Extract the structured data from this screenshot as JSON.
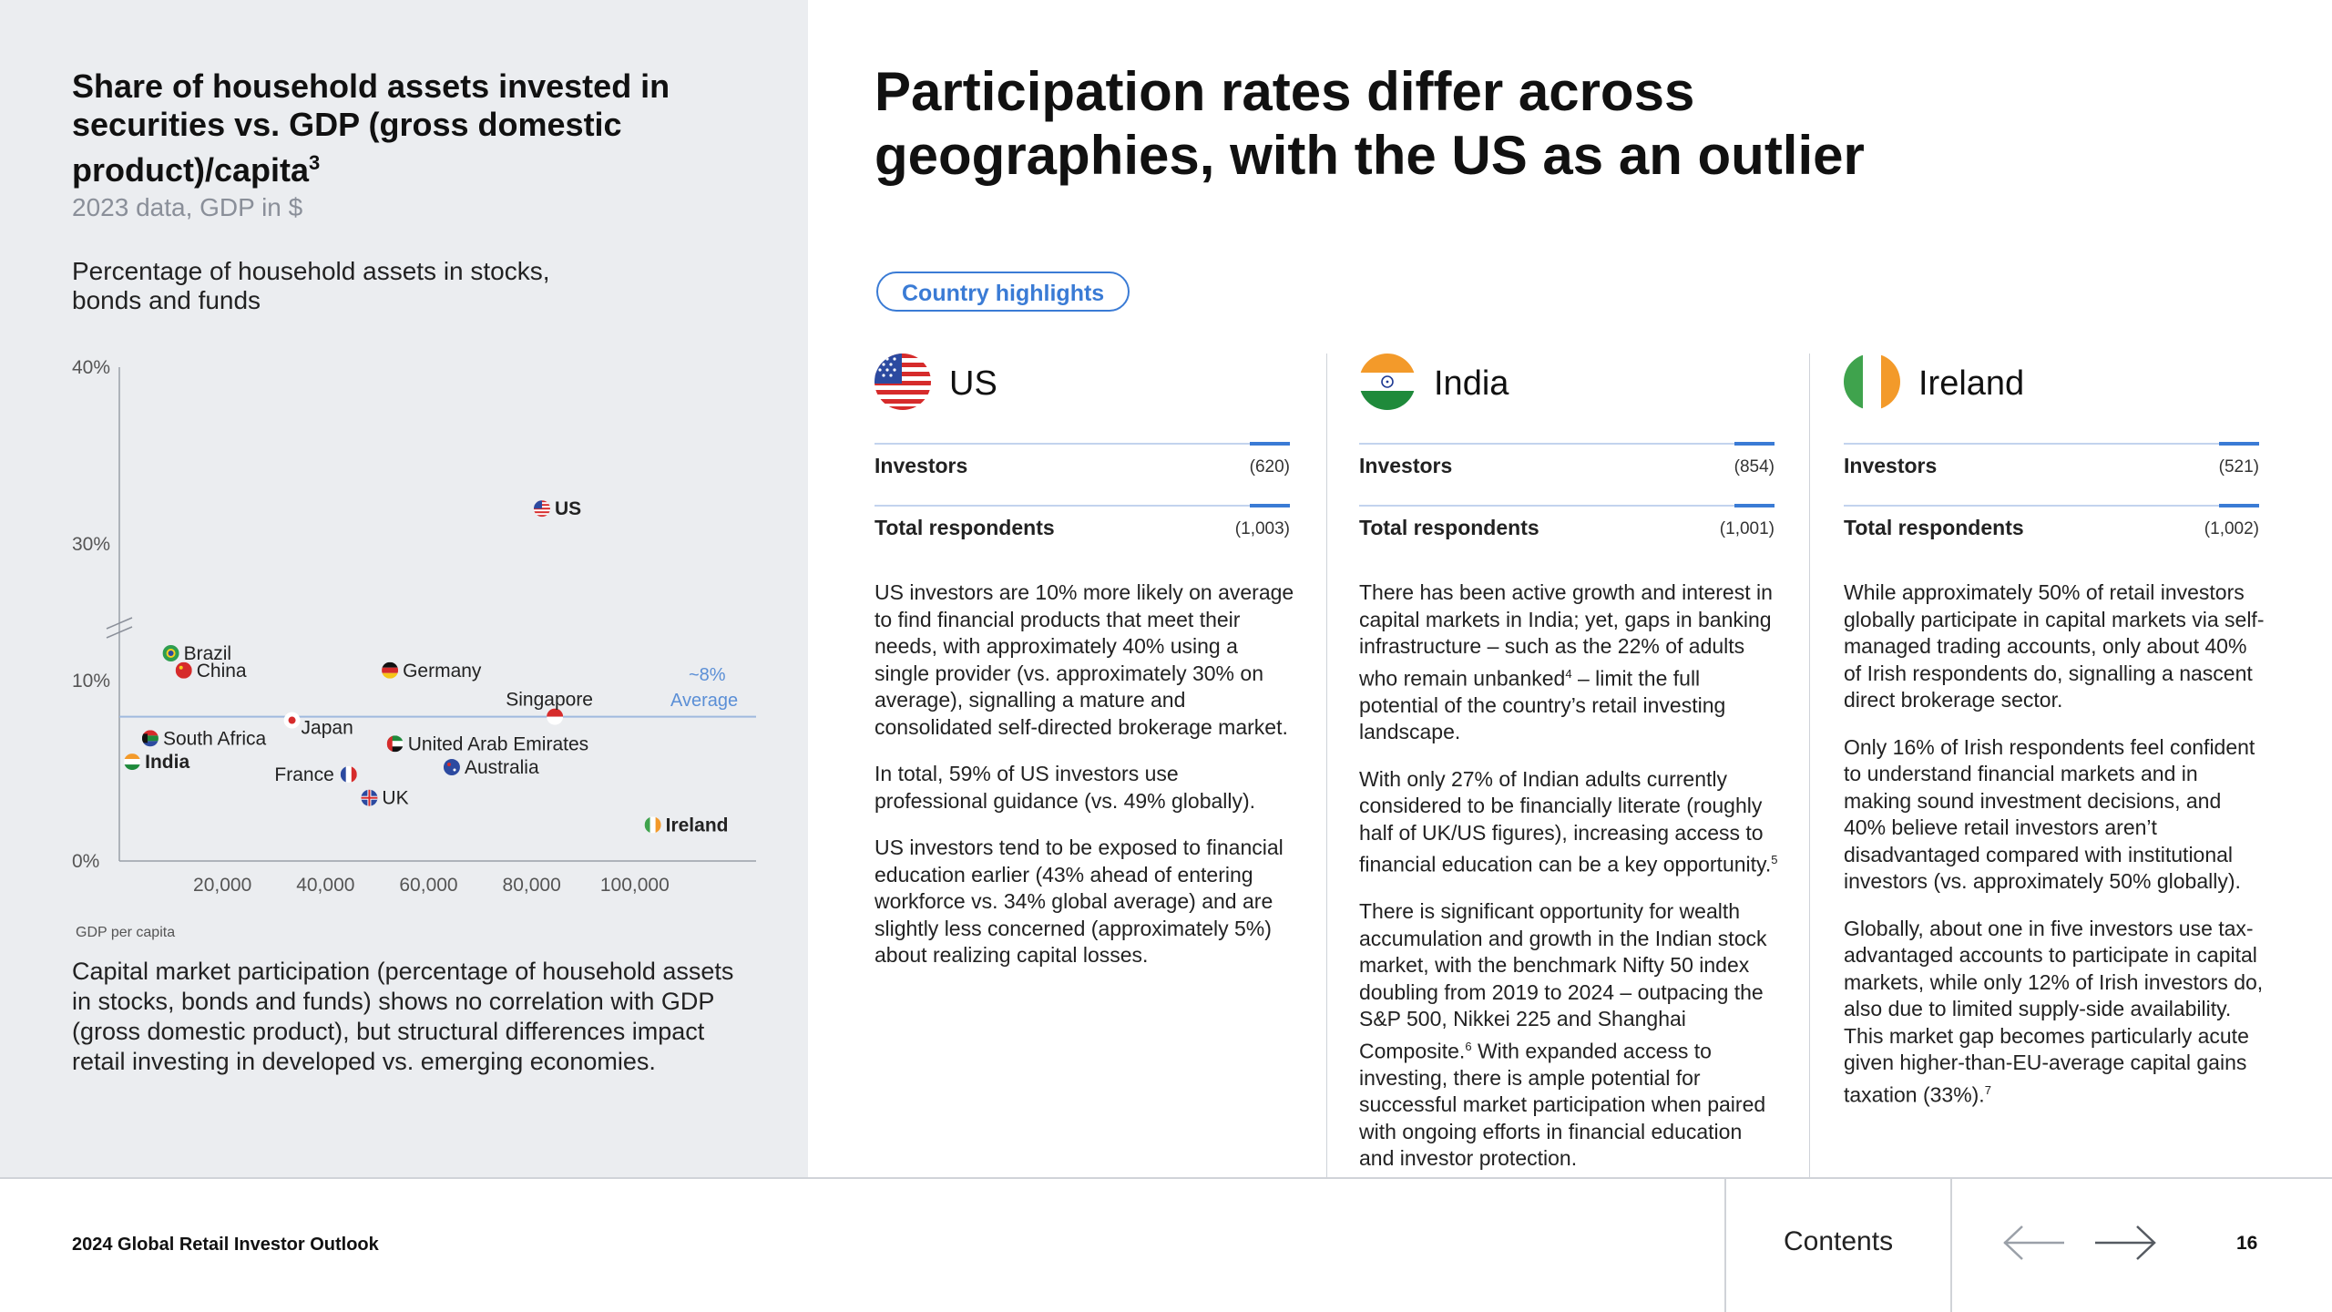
{
  "chart_data": {
    "type": "scatter",
    "title": "Share of household assets invested in securities vs. GDP (gross domestic product)/capita",
    "title_superscript": "3",
    "subtitle": "2023 data, GDP in $",
    "ylabel": "Percentage of household assets in stocks, bonds and funds",
    "xlabel": "GDP per capita",
    "x_ticks": [
      "20,000",
      "40,000",
      "60,000",
      "80,000",
      "100,000"
    ],
    "y_ticks": [
      "0%",
      "10%",
      "30%",
      "40%"
    ],
    "xlim": [
      0,
      120000
    ],
    "y_axis_break": "between 10% and 30%",
    "grid": false,
    "reference_line": {
      "value": 8,
      "label_line1": "~8%",
      "label_line2": "Average",
      "color": "#9fb9de"
    },
    "points": [
      {
        "name": "US",
        "x": 82000,
        "y": 32,
        "bold": true,
        "flag": "us"
      },
      {
        "name": "Brazil",
        "x": 10000,
        "y": 14,
        "bold": false,
        "flag": "brazil"
      },
      {
        "name": "China",
        "x": 12500,
        "y": 11.5,
        "bold": false,
        "flag": "china"
      },
      {
        "name": "Germany",
        "x": 52500,
        "y": 11.5,
        "bold": false,
        "flag": "germany"
      },
      {
        "name": "Singapore",
        "x": 84500,
        "y": 8,
        "bold": false,
        "flag": "singapore"
      },
      {
        "name": "Japan",
        "x": 33500,
        "y": 7.8,
        "bold": false,
        "flag": "japan"
      },
      {
        "name": "South Africa",
        "x": 6000,
        "y": 6.8,
        "bold": false,
        "flag": "south-africa"
      },
      {
        "name": "India",
        "x": 2500,
        "y": 5.5,
        "bold": true,
        "flag": "india"
      },
      {
        "name": "United Arab Emirates",
        "x": 53500,
        "y": 6.5,
        "bold": false,
        "flag": "uae"
      },
      {
        "name": "France",
        "x": 44500,
        "y": 4.8,
        "bold": false,
        "flag": "france"
      },
      {
        "name": "Australia",
        "x": 64500,
        "y": 5.2,
        "bold": false,
        "flag": "australia"
      },
      {
        "name": "UK",
        "x": 48500,
        "y": 3.5,
        "bold": false,
        "flag": "uk"
      },
      {
        "name": "Ireland",
        "x": 103500,
        "y": 2,
        "bold": true,
        "flag": "ireland"
      }
    ]
  },
  "caption": "Capital market participation (percentage of household assets in stocks, bonds and funds) shows no correlation with GDP (gross domestic product), but structural differences impact retail investing in developed vs. emerging economies.",
  "main_title": "Participation rates differ across geographies, with the US as an outlier",
  "pill_label": "Country highlights",
  "countries": [
    {
      "name": "US",
      "investors_label": "Investors",
      "investors_value": "(620)",
      "respondents_label": "Total respondents",
      "respondents_value": "(1,003)",
      "p1": "US investors are 10% more likely on average to find financial products that meet their needs, with approximately 40% using a single provider (vs. approximately 30% on average), signalling a mature and consolidated self-directed brokerage market.",
      "p2": "In total, 59% of US investors use professional guidance (vs. 49% globally).",
      "p3": "US investors tend to be exposed to financial education earlier (43% ahead of entering workforce vs. 34% global average) and are slightly less concerned (approximately 5%) about realizing capital losses."
    },
    {
      "name": "India",
      "investors_label": "Investors",
      "investors_value": "(854)",
      "respondents_label": "Total respondents",
      "respondents_value": "(1,001)",
      "p1a": "There has been active growth and interest in capital markets in India; yet, gaps in banking infrastructure – such as the 22% of adults who remain unbanked",
      "p1_sup": "4",
      "p1b": " – limit the full potential of the country’s retail investing landscape.",
      "p2a": "With only 27% of Indian adults currently considered to be financially literate (roughly half of UK/US figures), increasing access to financial education can be a key opportunity.",
      "p2_sup": "5",
      "p3a": "There is significant opportunity for wealth accumulation and growth in the Indian stock market, with the benchmark Nifty 50 index doubling from 2019 to 2024 – outpacing the S&P 500, Nikkei 225 and Shanghai Composite.",
      "p3_sup": "6",
      "p3b": " With expanded access to investing, there is ample potential for successful market participation when paired with ongoing efforts in financial education and investor protection."
    },
    {
      "name": "Ireland",
      "investors_label": "Investors",
      "investors_value": "(521)",
      "respondents_label": "Total respondents",
      "respondents_value": "(1,002)",
      "p1": "While approximately 50% of retail investors globally participate in capital markets via self-managed trading accounts, only about 40% of Irish respondents do, signalling a nascent direct brokerage sector.",
      "p2": "Only 16% of Irish respondents feel confident to understand financial markets and in making sound investment decisions, and 40% believe retail investors aren’t disadvantaged compared with institutional investors (vs. approximately 50% globally).",
      "p3a": "Globally, about one in five investors use tax-advantaged accounts to participate in capital markets, while only 12% of Irish investors do, also due to limited supply-side availability. This market gap becomes particularly acute given higher-than-EU-average capital gains taxation (33%).",
      "p3_sup": "7"
    }
  ],
  "footer": {
    "report_title": "2024 Global Retail Investor Outlook",
    "contents_label": "Contents",
    "page_number": "16"
  },
  "colors": {
    "accent": "#3a7bd5",
    "panel_bg": "#ebedf0"
  }
}
